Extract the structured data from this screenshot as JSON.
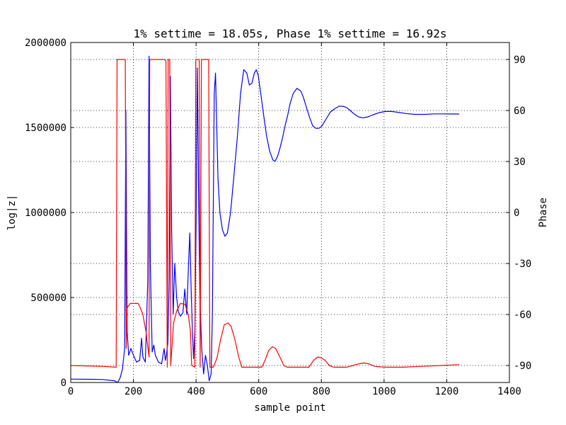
{
  "chart_data": {
    "type": "line",
    "title": "1% settime = 18.05s, Phase 1% settime = 16.92s",
    "xlabel": "sample point",
    "ylabel": "log|z|",
    "y2label": "Phase",
    "xlim": [
      0,
      1400
    ],
    "ylim": [
      0,
      2000000
    ],
    "y2lim": [
      -100,
      100
    ],
    "xticks": [
      0,
      200,
      400,
      600,
      800,
      1000,
      1200,
      1400
    ],
    "yticks": [
      0,
      500000,
      1000000,
      1500000,
      2000000
    ],
    "y2ticks": [
      -90,
      -60,
      -30,
      0,
      30,
      60,
      90
    ],
    "grid": true,
    "grid_style": "dotted",
    "series": [
      {
        "axis": "left",
        "color": "#0000ff",
        "points": [
          [
            0,
            20000
          ],
          [
            100,
            18000
          ],
          [
            140,
            10000
          ],
          [
            150,
            0
          ],
          [
            158,
            30000
          ],
          [
            165,
            80000
          ],
          [
            172,
            200000
          ],
          [
            176,
            1600000
          ],
          [
            180,
            300000
          ],
          [
            185,
            160000
          ],
          [
            192,
            200000
          ],
          [
            200,
            160000
          ],
          [
            210,
            120000
          ],
          [
            220,
            130000
          ],
          [
            226,
            260000
          ],
          [
            230,
            150000
          ],
          [
            238,
            120000
          ],
          [
            246,
            600000
          ],
          [
            250,
            1920000
          ],
          [
            254,
            700000
          ],
          [
            260,
            180000
          ],
          [
            265,
            220000
          ],
          [
            270,
            160000
          ],
          [
            280,
            120000
          ],
          [
            290,
            110000
          ],
          [
            298,
            200000
          ],
          [
            302,
            130000
          ],
          [
            305,
            160000
          ],
          [
            310,
            230000
          ],
          [
            314,
            600000
          ],
          [
            318,
            1800000
          ],
          [
            322,
            900000
          ],
          [
            327,
            400000
          ],
          [
            332,
            700000
          ],
          [
            338,
            500000
          ],
          [
            343,
            420000
          ],
          [
            350,
            390000
          ],
          [
            358,
            410000
          ],
          [
            364,
            550000
          ],
          [
            370,
            400000
          ],
          [
            376,
            700000
          ],
          [
            380,
            880000
          ],
          [
            384,
            560000
          ],
          [
            388,
            320000
          ],
          [
            392,
            140000
          ],
          [
            396,
            300000
          ],
          [
            400,
            900000
          ],
          [
            404,
            1850000
          ],
          [
            408,
            1100000
          ],
          [
            412,
            500000
          ],
          [
            418,
            200000
          ],
          [
            424,
            50000
          ],
          [
            430,
            160000
          ],
          [
            436,
            100000
          ],
          [
            442,
            10000
          ],
          [
            448,
            50000
          ],
          [
            452,
            400000
          ],
          [
            458,
            1700000
          ],
          [
            462,
            1820000
          ],
          [
            466,
            1500000
          ],
          [
            470,
            1200000
          ],
          [
            476,
            1000000
          ],
          [
            484,
            900000
          ],
          [
            492,
            860000
          ],
          [
            500,
            880000
          ],
          [
            510,
            1000000
          ],
          [
            520,
            1200000
          ],
          [
            532,
            1450000
          ],
          [
            542,
            1700000
          ],
          [
            552,
            1840000
          ],
          [
            562,
            1820000
          ],
          [
            570,
            1750000
          ],
          [
            578,
            1760000
          ],
          [
            586,
            1820000
          ],
          [
            592,
            1840000
          ],
          [
            598,
            1810000
          ],
          [
            605,
            1720000
          ],
          [
            615,
            1580000
          ],
          [
            625,
            1450000
          ],
          [
            635,
            1360000
          ],
          [
            645,
            1310000
          ],
          [
            652,
            1300000
          ],
          [
            660,
            1330000
          ],
          [
            668,
            1380000
          ],
          [
            676,
            1440000
          ],
          [
            684,
            1510000
          ],
          [
            692,
            1570000
          ],
          [
            700,
            1640000
          ],
          [
            710,
            1700000
          ],
          [
            722,
            1730000
          ],
          [
            734,
            1715000
          ],
          [
            742,
            1680000
          ],
          [
            752,
            1620000
          ],
          [
            762,
            1560000
          ],
          [
            772,
            1510000
          ],
          [
            782,
            1495000
          ],
          [
            792,
            1495000
          ],
          [
            802,
            1510000
          ],
          [
            815,
            1550000
          ],
          [
            828,
            1590000
          ],
          [
            842,
            1610000
          ],
          [
            856,
            1625000
          ],
          [
            868,
            1625000
          ],
          [
            880,
            1618000
          ],
          [
            892,
            1600000
          ],
          [
            904,
            1580000
          ],
          [
            918,
            1563000
          ],
          [
            932,
            1557000
          ],
          [
            948,
            1562000
          ],
          [
            965,
            1575000
          ],
          [
            985,
            1588000
          ],
          [
            1005,
            1594000
          ],
          [
            1025,
            1594000
          ],
          [
            1045,
            1589000
          ],
          [
            1070,
            1582000
          ],
          [
            1100,
            1577000
          ],
          [
            1130,
            1577000
          ],
          [
            1160,
            1580000
          ],
          [
            1190,
            1580000
          ],
          [
            1240,
            1579000
          ]
        ]
      },
      {
        "axis": "right",
        "color": "#ff0000",
        "points": [
          [
            0,
            -90
          ],
          [
            100,
            -90.5
          ],
          [
            145,
            -91
          ],
          [
            148,
            90
          ],
          [
            174,
            90
          ],
          [
            177,
            -80
          ],
          [
            180,
            -56
          ],
          [
            190,
            -53.5
          ],
          [
            215,
            -53.5
          ],
          [
            222,
            -56
          ],
          [
            230,
            -60
          ],
          [
            240,
            -70
          ],
          [
            250,
            -85
          ],
          [
            252,
            90
          ],
          [
            300,
            90
          ],
          [
            304,
            89
          ],
          [
            308,
            -91
          ],
          [
            311,
            90
          ],
          [
            316,
            90
          ],
          [
            319,
            -90
          ],
          [
            328,
            -65
          ],
          [
            338,
            -58
          ],
          [
            350,
            -53.5
          ],
          [
            365,
            -54
          ],
          [
            375,
            -60
          ],
          [
            382,
            -70
          ],
          [
            386,
            -90
          ],
          [
            396,
            -91
          ],
          [
            399,
            90
          ],
          [
            410,
            90
          ],
          [
            413,
            -91
          ],
          [
            417,
            90
          ],
          [
            440,
            90
          ],
          [
            444,
            -91
          ],
          [
            455,
            -91
          ],
          [
            466,
            -86
          ],
          [
            478,
            -75
          ],
          [
            490,
            -66
          ],
          [
            502,
            -65
          ],
          [
            512,
            -67
          ],
          [
            524,
            -75
          ],
          [
            536,
            -85
          ],
          [
            546,
            -91
          ],
          [
            610,
            -91
          ],
          [
            620,
            -87
          ],
          [
            632,
            -81
          ],
          [
            644,
            -79
          ],
          [
            654,
            -80
          ],
          [
            662,
            -83
          ],
          [
            670,
            -86
          ],
          [
            680,
            -90
          ],
          [
            690,
            -91
          ],
          [
            760,
            -91
          ],
          [
            775,
            -87
          ],
          [
            788,
            -85
          ],
          [
            800,
            -85.5
          ],
          [
            812,
            -87
          ],
          [
            825,
            -90
          ],
          [
            840,
            -91
          ],
          [
            880,
            -91
          ],
          [
            900,
            -90
          ],
          [
            920,
            -89
          ],
          [
            935,
            -88.5
          ],
          [
            950,
            -89
          ],
          [
            970,
            -90.5
          ],
          [
            1000,
            -91
          ],
          [
            1060,
            -91
          ],
          [
            1120,
            -90.5
          ],
          [
            1180,
            -90
          ],
          [
            1240,
            -89.5
          ]
        ]
      }
    ]
  }
}
